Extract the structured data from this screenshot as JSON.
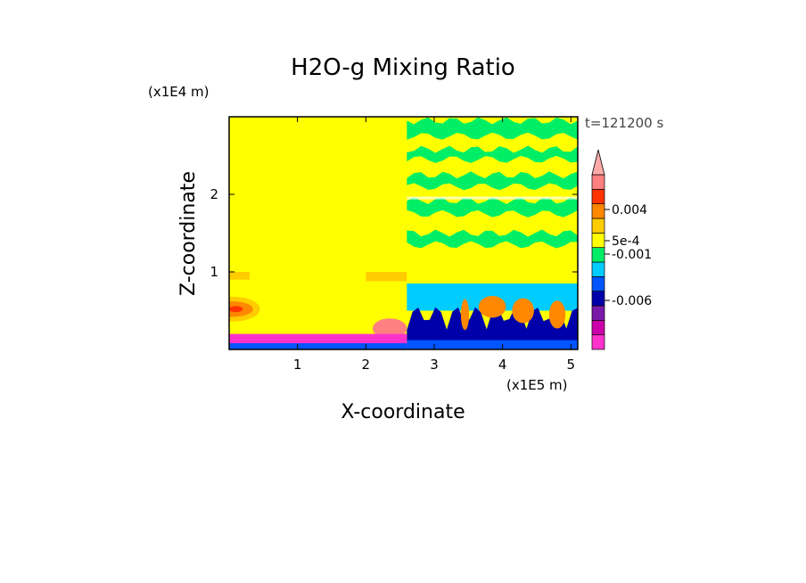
{
  "chart_data": {
    "type": "heatmap",
    "title": "H2O-g Mixing Ratio",
    "xlabel": "X-coordinate",
    "ylabel": "Z-coordinate",
    "x_unit": "(x1E5 m)",
    "y_unit": "(x1E4 m)",
    "time_label": "t=121200 s",
    "xlim": [
      0,
      5.1
    ],
    "ylim": [
      0,
      3.0
    ],
    "x_ticks": [
      1,
      2,
      3,
      4,
      5
    ],
    "y_ticks": [
      1,
      2
    ],
    "colorbar": {
      "extend": "max",
      "colors": [
        "#ff33cc",
        "#cc00aa",
        "#7a1aa8",
        "#0000aa",
        "#0055ff",
        "#00ccff",
        "#00ee66",
        "#ffff00",
        "#ffcc00",
        "#ff8800",
        "#ff3300",
        "#ff8080"
      ],
      "extend_color": "#ffaaaa",
      "labels": [
        "-0.006",
        "-0.001",
        "5e-4",
        "0.004"
      ]
    },
    "field": [
      {
        "name": "background",
        "color": "#ffff00",
        "x": [
          0,
          5.1
        ],
        "z": [
          0,
          3.0
        ]
      },
      {
        "name": "upper_right_green_bands",
        "color": "#00ee66",
        "x": [
          2.6,
          5.1
        ],
        "z": [
          1.3,
          2.95
        ]
      },
      {
        "name": "boundary_layer_cyan",
        "color": "#00ccff",
        "x": [
          2.6,
          5.1
        ],
        "z": [
          0.5,
          0.85
        ]
      },
      {
        "name": "surface_layer_magenta",
        "color": "#ff33cc",
        "x": [
          0,
          2.6
        ],
        "z": [
          0,
          0.2
        ]
      },
      {
        "name": "left_orange_plume",
        "color": "#ff8800",
        "x": [
          0,
          0.45
        ],
        "z": [
          0.35,
          0.65
        ]
      },
      {
        "name": "right_orange_cells",
        "color": "#ff8800",
        "x": [
          3.3,
          5.1
        ],
        "z": [
          0.3,
          0.7
        ]
      },
      {
        "name": "right_blue_convection",
        "color": "#0000aa",
        "x": [
          2.6,
          5.1
        ],
        "z": [
          0,
          0.6
        ]
      }
    ]
  }
}
